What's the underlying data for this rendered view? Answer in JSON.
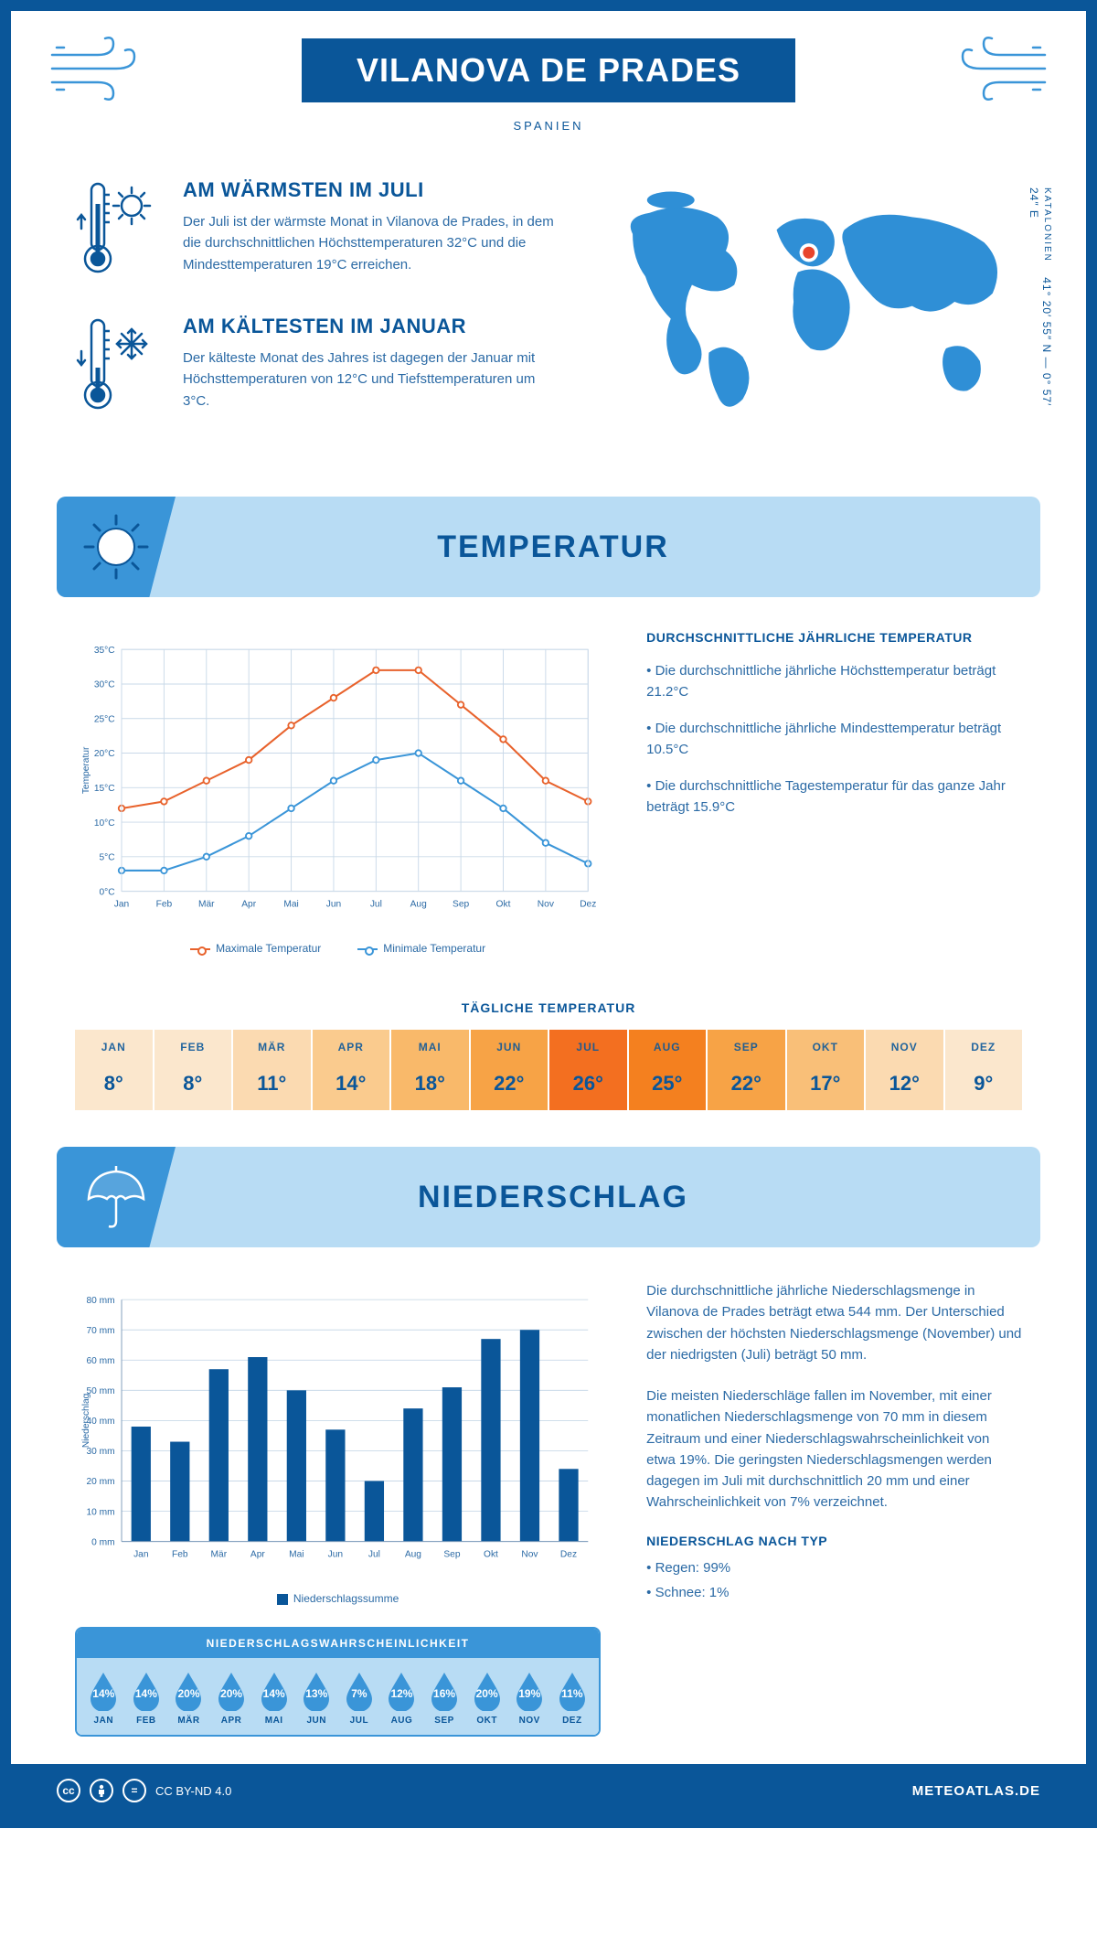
{
  "header": {
    "title": "VILANOVA DE PRADES",
    "subtitle": "SPANIEN"
  },
  "summary": {
    "warm": {
      "heading": "AM WÄRMSTEN IM JULI",
      "text": "Der Juli ist der wärmste Monat in Vilanova de Prades, in dem die durchschnittlichen Höchsttemperaturen 32°C und die Mindesttemperaturen 19°C erreichen."
    },
    "cold": {
      "heading": "AM KÄLTESTEN IM JANUAR",
      "text": "Der kälteste Monat des Jahres ist dagegen der Januar mit Höchsttemperaturen von 12°C und Tiefsttemperaturen um 3°C."
    },
    "coords": {
      "region": "KATALONIEN",
      "lat": "41° 20′ 55″ N",
      "lon": "0° 57′ 24″ E"
    }
  },
  "sections": {
    "temperature": "TEMPERATUR",
    "precip": "NIEDERSCHLAG"
  },
  "temp_chart": {
    "type": "line",
    "months": [
      "Jan",
      "Feb",
      "Mär",
      "Apr",
      "Mai",
      "Jun",
      "Jul",
      "Aug",
      "Sep",
      "Okt",
      "Nov",
      "Dez"
    ],
    "max": [
      12,
      13,
      16,
      19,
      24,
      28,
      32,
      32,
      27,
      22,
      16,
      13
    ],
    "min": [
      3,
      3,
      5,
      8,
      12,
      16,
      19,
      20,
      16,
      12,
      7,
      4
    ],
    "ylim": [
      0,
      35
    ],
    "ytick_step": 5,
    "y_unit": "°C",
    "axis_label": "Temperatur",
    "grid_color": "#c9d9e8",
    "max_color": "#e8622c",
    "min_color": "#3a95d8",
    "legend_max": "Maximale Temperatur",
    "legend_min": "Minimale Temperatur",
    "label_fontsize": 11
  },
  "temp_text": {
    "heading": "DURCHSCHNITTLICHE JÄHRLICHE TEMPERATUR",
    "bullets": [
      "• Die durchschnittliche jährliche Höchsttemperatur beträgt 21.2°C",
      "• Die durchschnittliche jährliche Mindesttemperatur beträgt 10.5°C",
      "• Die durchschnittliche Tagestemperatur für das ganze Jahr beträgt 15.9°C"
    ]
  },
  "daily": {
    "title": "TÄGLICHE TEMPERATUR",
    "months": [
      "JAN",
      "FEB",
      "MÄR",
      "APR",
      "MAI",
      "JUN",
      "JUL",
      "AUG",
      "SEP",
      "OKT",
      "NOV",
      "DEZ"
    ],
    "values": [
      "8°",
      "8°",
      "11°",
      "14°",
      "18°",
      "22°",
      "26°",
      "25°",
      "22°",
      "17°",
      "12°",
      "9°"
    ],
    "colors": [
      "#fbe7cd",
      "#fbe7cd",
      "#fbdab1",
      "#facb8e",
      "#f9b96a",
      "#f7a346",
      "#f36f20",
      "#f4801f",
      "#f7a346",
      "#f9bf78",
      "#fbdab1",
      "#fbe7cd"
    ]
  },
  "precip_chart": {
    "type": "bar",
    "months": [
      "Jan",
      "Feb",
      "Mär",
      "Apr",
      "Mai",
      "Jun",
      "Jul",
      "Aug",
      "Sep",
      "Okt",
      "Nov",
      "Dez"
    ],
    "values": [
      38,
      33,
      57,
      61,
      50,
      37,
      20,
      44,
      51,
      67,
      70,
      24
    ],
    "ylim": [
      0,
      80
    ],
    "ytick_step": 10,
    "y_unit": " mm",
    "axis_label": "Niederschlag",
    "bar_color": "#0a5699",
    "grid_color": "#c9d9e8",
    "legend": "Niederschlagssumme",
    "bar_width": 0.5
  },
  "precip_text": {
    "para1": "Die durchschnittliche jährliche Niederschlagsmenge in Vilanova de Prades beträgt etwa 544 mm. Der Unterschied zwischen der höchsten Niederschlagsmenge (November) und der niedrigsten (Juli) beträgt 50 mm.",
    "para2": "Die meisten Niederschläge fallen im November, mit einer monatlichen Niederschlagsmenge von 70 mm in diesem Zeitraum und einer Niederschlagswahrscheinlichkeit von etwa 19%. Die geringsten Niederschlagsmengen werden dagegen im Juli mit durchschnittlich 20 mm und einer Wahrscheinlichkeit von 7% verzeichnet.",
    "type_heading": "NIEDERSCHLAG NACH TYP",
    "type_rain": "• Regen: 99%",
    "type_snow": "• Schnee: 1%"
  },
  "probability": {
    "title": "NIEDERSCHLAGSWAHRSCHEINLICHKEIT",
    "months": [
      "JAN",
      "FEB",
      "MÄR",
      "APR",
      "MAI",
      "JUN",
      "JUL",
      "AUG",
      "SEP",
      "OKT",
      "NOV",
      "DEZ"
    ],
    "values": [
      "14%",
      "14%",
      "20%",
      "20%",
      "14%",
      "13%",
      "7%",
      "12%",
      "16%",
      "20%",
      "19%",
      "11%"
    ],
    "drop_color": "#3a95d8"
  },
  "footer": {
    "license": "CC BY-ND 4.0",
    "brand": "METEOATLAS.DE"
  },
  "colors": {
    "primary": "#0a5699",
    "light_blue": "#b8dcf4",
    "mid_blue": "#3a95d8",
    "text": "#2b6aa5"
  }
}
